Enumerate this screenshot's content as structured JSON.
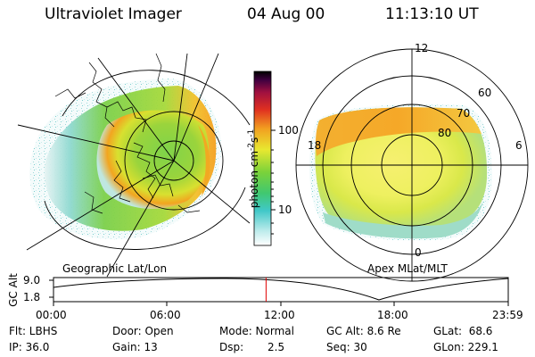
{
  "header": {
    "title": "Ultraviolet Imager",
    "date": "04 Aug 00",
    "time": "11:13:10 UT"
  },
  "geo_panel": {
    "label": "Geographic Lat/Lon"
  },
  "apex_panel": {
    "label": "Apex MLat/MLT",
    "mlt_labels": [
      "12",
      "18",
      "6",
      "0"
    ],
    "lat_labels": [
      "60",
      "70",
      "80"
    ]
  },
  "colorbar": {
    "unit_label": "photon cm",
    "unit_exp1": "-2",
    "unit_s": "s",
    "unit_exp2": "-1",
    "ticks": [
      "100",
      "10"
    ]
  },
  "altitude_plot": {
    "ylabel": "GC Alt",
    "yticks": [
      "9.0",
      "1.8"
    ],
    "xticks": [
      "00:00",
      "06:00",
      "12:00",
      "18:00",
      "23:59"
    ],
    "marker_hour": 11.22,
    "marker_color": "#e00000"
  },
  "info": {
    "filter": "Flt: LBHS",
    "door": "Door: Open",
    "mode": "Mode: Normal",
    "gc_alt": "GC Alt: 8.6 Re",
    "glat": "GLat:  68.6",
    "ip": "IP: 36.0",
    "gain": "Gain: 13",
    "dsp_label": "Dsp:",
    "dsp_value": "2.5",
    "seq": "Seq: 30",
    "glon": "GLon: 229.1"
  }
}
